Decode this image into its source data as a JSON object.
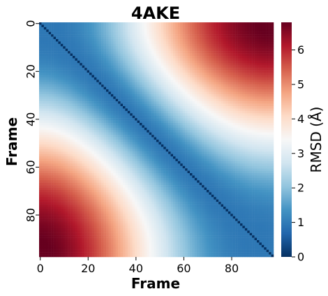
{
  "chart_data": {
    "type": "heatmap",
    "title": "4AKE",
    "xlabel": "Frame",
    "ylabel": "Frame",
    "n_frames": 98,
    "x_ticks": [
      0,
      20,
      40,
      60,
      80
    ],
    "y_ticks": [
      0,
      20,
      40,
      60,
      80
    ],
    "colormap": "RdBu_r",
    "colorbar": {
      "label": "RMSD (Å)",
      "vmin": 0,
      "vmax": 6.8,
      "ticks": [
        0,
        1,
        2,
        3,
        4,
        5,
        6
      ]
    },
    "description_values": {
      "diagonal": 0,
      "near_diagonal": 1.0,
      "frame_0_vs_40": 3.3,
      "frame_0_vs_60": 4.6,
      "frame_0_vs_97": 6.8,
      "frame_20_vs_97": 5.2,
      "frame_40_vs_97": 3.6,
      "frame_60_vs_97": 1.9
    },
    "colors": {
      "low": "#053061",
      "mid": "#f7f7f7",
      "high": "#67001f"
    }
  }
}
